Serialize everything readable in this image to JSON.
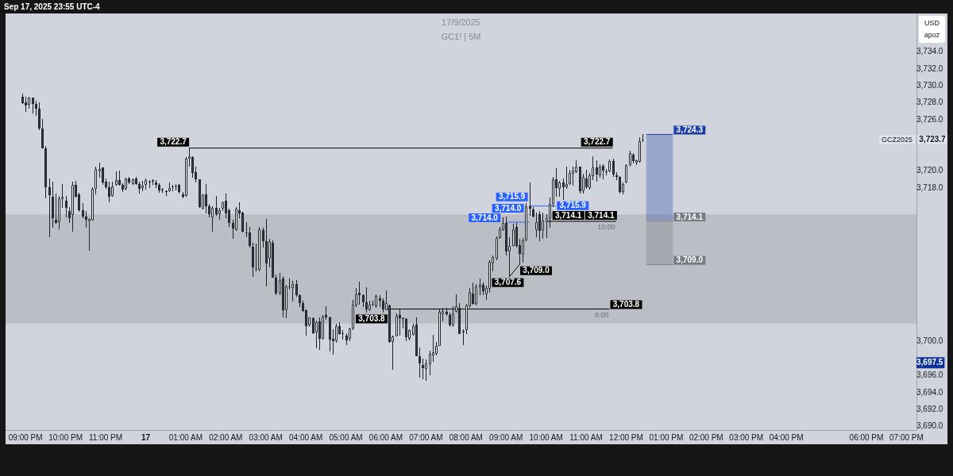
{
  "chart_data": {
    "type": "candlestick",
    "title": "17/9/2025",
    "subtitle": "GC1! | 5M",
    "ylabel": "USD apoz",
    "xlim": [
      "2025-09-16T20:30",
      "2025-09-17T19:15"
    ],
    "ylim": [
      3689.6,
      3738.5
    ],
    "xticks": [
      {
        "value": "2025-09-16T21:00",
        "label": "09:00 PM"
      },
      {
        "value": "2025-09-16T22:00",
        "label": "10:00 PM"
      },
      {
        "value": "2025-09-16T23:00",
        "label": "11:00 PM"
      },
      {
        "value": "2025-09-17T00:00",
        "label": "17"
      },
      {
        "value": "2025-09-17T01:00",
        "label": "01:00 AM"
      },
      {
        "value": "2025-09-17T02:00",
        "label": "02:00 AM"
      },
      {
        "value": "2025-09-17T03:00",
        "label": "03:00 AM"
      },
      {
        "value": "2025-09-17T04:00",
        "label": "04:00 AM"
      },
      {
        "value": "2025-09-17T05:00",
        "label": "05:00 AM"
      },
      {
        "value": "2025-09-17T06:00",
        "label": "06:00 AM"
      },
      {
        "value": "2025-09-17T07:00",
        "label": "07:00 AM"
      },
      {
        "value": "2025-09-17T08:00",
        "label": "08:00 AM"
      },
      {
        "value": "2025-09-17T09:00",
        "label": "09:00 AM"
      },
      {
        "value": "2025-09-17T10:00",
        "label": "10:00 AM"
      },
      {
        "value": "2025-09-17T11:00",
        "label": "11:00 AM"
      },
      {
        "value": "2025-09-17T12:00",
        "label": "12:00 PM"
      },
      {
        "value": "2025-09-17T13:00",
        "label": "01:00 PM"
      },
      {
        "value": "2025-09-17T14:00",
        "label": "02:00 PM"
      },
      {
        "value": "2025-09-17T15:00",
        "label": "03:00 PM"
      },
      {
        "value": "2025-09-17T16:00",
        "label": "04:00 PM"
      },
      {
        "value": "2025-09-17T18:00",
        "label": "06:00 PM"
      },
      {
        "value": "2025-09-17T19:00",
        "label": "07:00 PM"
      }
    ],
    "yticks": [
      {
        "value": 3690,
        "label": "3,690.0"
      },
      {
        "value": 3692,
        "label": "3,692.0"
      },
      {
        "value": 3694,
        "label": "3,694.0"
      },
      {
        "value": 3696,
        "label": "3,696.0"
      },
      {
        "value": 3697.5,
        "label": "3,697.5"
      },
      {
        "value": 3700,
        "label": "3,700.0"
      },
      {
        "value": 3718,
        "label": "3,718.0"
      },
      {
        "value": 3720,
        "label": "3,720.0"
      },
      {
        "value": 3726,
        "label": "3,726.0"
      },
      {
        "value": 3728,
        "label": "3,728.0"
      },
      {
        "value": 3730,
        "label": "3,730.0"
      },
      {
        "value": 3732,
        "label": "3,732.0"
      },
      {
        "value": 3734,
        "label": "3,734.0"
      }
    ],
    "grid": false,
    "legend": false,
    "bands": [
      {
        "axis": "y",
        "from": 3702.1,
        "to": 3714.9,
        "color": "#bcbec5"
      }
    ],
    "annotations": [
      "Sep 17, 2025 23:55 UTC-4",
      {
        "text": "10:00",
        "x": "2025-09-17T11:45",
        "y": 3714.1
      },
      {
        "text": "6:00",
        "x": "2025-09-17T11:35",
        "y": 3703.8
      }
    ],
    "series": [
      {
        "type": "candlestick",
        "name": "GCZ2025",
        "x": [
          "2025-09-16T20:55",
          "2025-09-16T21:00",
          "2025-09-16T21:05",
          "2025-09-16T21:10",
          "2025-09-16T21:15",
          "2025-09-16T21:20",
          "2025-09-16T21:25",
          "2025-09-16T21:30",
          "2025-09-16T21:35",
          "2025-09-16T21:40",
          "2025-09-16T21:45",
          "2025-09-16T21:50",
          "2025-09-16T21:55",
          "2025-09-16T22:00",
          "2025-09-16T22:05",
          "2025-09-16T22:10",
          "2025-09-16T22:15",
          "2025-09-16T22:20",
          "2025-09-16T22:25",
          "2025-09-16T22:30",
          "2025-09-16T22:35",
          "2025-09-16T22:40",
          "2025-09-16T22:45",
          "2025-09-16T22:50",
          "2025-09-16T22:55",
          "2025-09-16T23:00",
          "2025-09-16T23:05",
          "2025-09-16T23:10",
          "2025-09-16T23:15",
          "2025-09-16T23:20",
          "2025-09-16T23:25",
          "2025-09-16T23:30",
          "2025-09-16T23:35",
          "2025-09-16T23:40",
          "2025-09-16T23:45",
          "2025-09-16T23:50",
          "2025-09-16T23:55",
          "2025-09-17T00:00",
          "2025-09-17T00:05",
          "2025-09-17T00:10",
          "2025-09-17T00:15",
          "2025-09-17T00:20",
          "2025-09-17T00:25",
          "2025-09-17T00:30",
          "2025-09-17T00:35",
          "2025-09-17T00:40",
          "2025-09-17T00:45",
          "2025-09-17T00:50",
          "2025-09-17T00:55",
          "2025-09-17T01:00",
          "2025-09-17T01:05",
          "2025-09-17T01:10",
          "2025-09-17T01:15",
          "2025-09-17T01:20",
          "2025-09-17T01:25",
          "2025-09-17T01:30",
          "2025-09-17T01:35",
          "2025-09-17T01:40",
          "2025-09-17T01:45",
          "2025-09-17T01:50",
          "2025-09-17T01:55",
          "2025-09-17T02:00",
          "2025-09-17T02:05",
          "2025-09-17T02:10",
          "2025-09-17T02:15",
          "2025-09-17T02:20",
          "2025-09-17T02:25",
          "2025-09-17T02:30",
          "2025-09-17T02:35",
          "2025-09-17T02:40",
          "2025-09-17T02:45",
          "2025-09-17T02:50",
          "2025-09-17T02:55",
          "2025-09-17T03:00",
          "2025-09-17T03:05",
          "2025-09-17T03:10",
          "2025-09-17T03:15",
          "2025-09-17T03:20",
          "2025-09-17T03:25",
          "2025-09-17T03:30",
          "2025-09-17T03:35",
          "2025-09-17T03:40",
          "2025-09-17T03:45",
          "2025-09-17T03:50",
          "2025-09-17T03:55",
          "2025-09-17T04:00",
          "2025-09-17T04:05",
          "2025-09-17T04:10",
          "2025-09-17T04:15",
          "2025-09-17T04:20",
          "2025-09-17T04:25",
          "2025-09-17T04:30",
          "2025-09-17T04:35",
          "2025-09-17T04:40",
          "2025-09-17T04:45",
          "2025-09-17T04:50",
          "2025-09-17T04:55",
          "2025-09-17T05:00",
          "2025-09-17T05:05",
          "2025-09-17T05:10",
          "2025-09-17T05:15",
          "2025-09-17T05:20",
          "2025-09-17T05:25",
          "2025-09-17T05:30",
          "2025-09-17T05:35",
          "2025-09-17T05:40",
          "2025-09-17T05:45",
          "2025-09-17T05:50",
          "2025-09-17T05:55",
          "2025-09-17T06:00",
          "2025-09-17T06:05",
          "2025-09-17T06:10",
          "2025-09-17T06:15",
          "2025-09-17T06:20",
          "2025-09-17T06:25",
          "2025-09-17T06:30",
          "2025-09-17T06:35",
          "2025-09-17T06:40",
          "2025-09-17T06:45",
          "2025-09-17T06:50",
          "2025-09-17T06:55",
          "2025-09-17T07:00",
          "2025-09-17T07:05",
          "2025-09-17T07:10",
          "2025-09-17T07:15",
          "2025-09-17T07:20",
          "2025-09-17T07:25",
          "2025-09-17T07:30",
          "2025-09-17T07:35",
          "2025-09-17T07:40",
          "2025-09-17T07:45",
          "2025-09-17T07:50",
          "2025-09-17T07:55",
          "2025-09-17T08:00",
          "2025-09-17T08:05",
          "2025-09-17T08:10",
          "2025-09-17T08:15",
          "2025-09-17T08:20",
          "2025-09-17T08:25",
          "2025-09-17T08:30",
          "2025-09-17T08:35",
          "2025-09-17T08:40",
          "2025-09-17T08:45",
          "2025-09-17T08:50",
          "2025-09-17T08:55",
          "2025-09-17T09:00",
          "2025-09-17T09:05",
          "2025-09-17T09:10",
          "2025-09-17T09:15",
          "2025-09-17T09:20",
          "2025-09-17T09:25",
          "2025-09-17T09:30",
          "2025-09-17T09:35",
          "2025-09-17T09:40",
          "2025-09-17T09:45",
          "2025-09-17T09:50",
          "2025-09-17T09:55",
          "2025-09-17T10:00",
          "2025-09-17T10:05",
          "2025-09-17T10:10",
          "2025-09-17T10:15",
          "2025-09-17T10:20",
          "2025-09-17T10:25",
          "2025-09-17T10:30",
          "2025-09-17T10:35",
          "2025-09-17T10:40",
          "2025-09-17T10:45",
          "2025-09-17T10:50",
          "2025-09-17T10:55",
          "2025-09-17T11:00",
          "2025-09-17T11:05",
          "2025-09-17T11:10",
          "2025-09-17T11:15",
          "2025-09-17T11:20",
          "2025-09-17T11:25",
          "2025-09-17T11:30",
          "2025-09-17T11:35",
          "2025-09-17T11:40",
          "2025-09-17T11:45",
          "2025-09-17T11:50",
          "2025-09-17T11:55",
          "2025-09-17T12:00",
          "2025-09-17T12:05",
          "2025-09-17T12:10",
          "2025-09-17T12:15",
          "2025-09-17T12:20",
          "2025-09-17T12:25"
        ],
        "ohlc": [
          [
            3728.7,
            3729.0,
            3727.9,
            3728.0
          ],
          [
            3728.1,
            3728.7,
            3727.0,
            3727.7
          ],
          [
            3727.8,
            3728.7,
            3727.4,
            3728.6
          ],
          [
            3728.6,
            3728.6,
            3726.8,
            3727.9
          ],
          [
            3727.9,
            3728.2,
            3726.5,
            3727.3
          ],
          [
            3727.3,
            3728.0,
            3724.9,
            3725.0
          ],
          [
            3725.0,
            3726.1,
            3722.7,
            3722.7
          ],
          [
            3722.7,
            3722.9,
            3716.8,
            3718.1
          ],
          [
            3718.1,
            3719.1,
            3712.3,
            3717.2
          ],
          [
            3717.0,
            3718.7,
            3713.4,
            3714.5
          ],
          [
            3714.3,
            3717.3,
            3713.9,
            3713.9
          ],
          [
            3714.0,
            3717.0,
            3713.2,
            3716.8
          ],
          [
            3716.7,
            3718.4,
            3715.7,
            3717.0
          ],
          [
            3716.5,
            3717.0,
            3714.6,
            3715.7
          ],
          [
            3715.3,
            3715.7,
            3714.0,
            3714.5
          ],
          [
            3714.8,
            3718.7,
            3712.9,
            3718.4
          ],
          [
            3718.4,
            3718.8,
            3716.9,
            3717.0
          ],
          [
            3717.3,
            3717.4,
            3715.3,
            3715.4
          ],
          [
            3715.4,
            3716.2,
            3714.5,
            3714.7
          ],
          [
            3714.7,
            3715.3,
            3713.4,
            3714.3
          ],
          [
            3714.1,
            3714.4,
            3710.7,
            3714.4
          ],
          [
            3714.2,
            3718.1,
            3714.2,
            3717.9
          ],
          [
            3717.9,
            3720.5,
            3717.3,
            3720.2
          ],
          [
            3720.0,
            3720.9,
            3719.3,
            3720.2
          ],
          [
            3720.4,
            3720.4,
            3718.4,
            3718.7
          ],
          [
            3718.8,
            3719.1,
            3718.0,
            3718.1
          ],
          [
            3718.1,
            3718.7,
            3716.4,
            3717.0
          ],
          [
            3717.1,
            3718.7,
            3717.0,
            3718.2
          ],
          [
            3718.4,
            3719.9,
            3718.3,
            3718.9
          ],
          [
            3718.9,
            3720.0,
            3718.3,
            3718.4
          ],
          [
            3718.4,
            3718.5,
            3717.6,
            3717.8
          ],
          [
            3717.9,
            3719.2,
            3717.8,
            3719.1
          ],
          [
            3719.1,
            3719.3,
            3718.5,
            3718.7
          ],
          [
            3718.5,
            3719.1,
            3718.4,
            3719.0
          ],
          [
            3719.1,
            3719.3,
            3718.4,
            3718.5
          ],
          [
            3718.5,
            3718.7,
            3717.4,
            3717.9
          ],
          [
            3718.0,
            3718.8,
            3717.7,
            3718.3
          ],
          [
            3718.4,
            3719.1,
            3717.9,
            3718.9
          ],
          [
            3718.8,
            3718.9,
            3718.1,
            3718.7
          ],
          [
            3718.8,
            3719.0,
            3718.4,
            3718.9
          ],
          [
            3718.7,
            3718.9,
            3718.1,
            3718.4
          ],
          [
            3718.4,
            3718.5,
            3717.5,
            3717.7
          ],
          [
            3717.8,
            3718.0,
            3717.5,
            3717.7
          ],
          [
            3717.6,
            3717.7,
            3717.1,
            3717.5
          ],
          [
            3717.6,
            3718.6,
            3717.6,
            3718.0
          ],
          [
            3718.1,
            3718.3,
            3717.7,
            3718.2
          ],
          [
            3718.1,
            3718.4,
            3717.8,
            3718.2
          ],
          [
            3718.4,
            3718.4,
            3717.4,
            3717.5
          ],
          [
            3717.3,
            3717.5,
            3716.8,
            3717.0
          ],
          [
            3717.1,
            3721.6,
            3717.0,
            3721.5
          ],
          [
            3721.5,
            3722.7,
            3720.6,
            3721.7
          ],
          [
            3721.6,
            3721.7,
            3719.3,
            3719.8
          ],
          [
            3719.9,
            3720.5,
            3718.7,
            3719.0
          ],
          [
            3719.0,
            3719.0,
            3715.7,
            3715.8
          ],
          [
            3715.6,
            3717.3,
            3715.5,
            3717.2
          ],
          [
            3717.3,
            3718.4,
            3715.1,
            3715.9
          ],
          [
            3715.9,
            3716.1,
            3714.6,
            3714.9
          ],
          [
            3714.6,
            3715.8,
            3712.9,
            3715.7
          ],
          [
            3715.7,
            3717.0,
            3714.8,
            3714.9
          ],
          [
            3714.9,
            3715.6,
            3714.3,
            3715.4
          ],
          [
            3715.6,
            3716.4,
            3715.4,
            3716.3
          ],
          [
            3716.5,
            3717.3,
            3714.5,
            3715.0
          ],
          [
            3715.4,
            3715.5,
            3713.5,
            3713.9
          ],
          [
            3713.9,
            3714.2,
            3712.1,
            3713.3
          ],
          [
            3713.1,
            3715.7,
            3713.0,
            3715.6
          ],
          [
            3715.4,
            3716.3,
            3714.5,
            3715.0
          ],
          [
            3715.1,
            3715.2,
            3712.8,
            3712.9
          ],
          [
            3712.7,
            3714.0,
            3712.3,
            3712.8
          ],
          [
            3712.8,
            3713.4,
            3711.1,
            3711.2
          ],
          [
            3711.1,
            3711.5,
            3707.6,
            3708.7
          ],
          [
            3708.5,
            3711.4,
            3708.3,
            3708.6
          ],
          [
            3708.4,
            3713.4,
            3708.3,
            3713.2
          ],
          [
            3713.1,
            3713.3,
            3711.1,
            3711.8
          ],
          [
            3711.8,
            3714.3,
            3706.5,
            3709.2
          ],
          [
            3709.7,
            3712.0,
            3708.7,
            3711.8
          ],
          [
            3711.6,
            3711.8,
            3707.5,
            3707.5
          ],
          [
            3707.5,
            3707.8,
            3705.5,
            3705.6
          ],
          [
            3705.6,
            3708.0,
            3705.5,
            3707.2
          ],
          [
            3707.4,
            3707.6,
            3702.9,
            3703.7
          ],
          [
            3703.7,
            3706.6,
            3702.8,
            3706.5
          ],
          [
            3706.4,
            3707.3,
            3706.1,
            3706.5
          ],
          [
            3706.3,
            3707.1,
            3704.7,
            3706.7
          ],
          [
            3706.7,
            3707.2,
            3705.3,
            3705.4
          ],
          [
            3705.4,
            3705.5,
            3704.1,
            3704.5
          ],
          [
            3704.5,
            3704.7,
            3703.5,
            3703.6
          ],
          [
            3703.7,
            3703.7,
            3700.7,
            3701.8
          ],
          [
            3701.9,
            3702.8,
            3701.8,
            3702.8
          ],
          [
            3702.7,
            3702.8,
            3700.9,
            3701.0
          ],
          [
            3701.1,
            3702.4,
            3699.2,
            3702.3
          ],
          [
            3702.4,
            3702.8,
            3699.1,
            3700.3
          ],
          [
            3700.3,
            3703.1,
            3700.3,
            3702.9
          ],
          [
            3703.1,
            3704.1,
            3702.6,
            3702.8
          ],
          [
            3702.8,
            3702.9,
            3698.9,
            3700.2
          ],
          [
            3700.3,
            3701.4,
            3698.5,
            3700.0
          ],
          [
            3700.0,
            3702.0,
            3699.9,
            3701.8
          ],
          [
            3701.8,
            3702.2,
            3700.8,
            3700.9
          ],
          [
            3700.9,
            3701.3,
            3700.3,
            3701.0
          ],
          [
            3700.7,
            3700.9,
            3699.6,
            3700.1
          ],
          [
            3700.3,
            3701.6,
            3700.1,
            3701.5
          ],
          [
            3701.5,
            3704.8,
            3701.4,
            3704.3
          ],
          [
            3704.2,
            3706.2,
            3704.1,
            3705.5
          ],
          [
            3705.7,
            3707.0,
            3704.4,
            3705.4
          ],
          [
            3705.4,
            3705.5,
            3704.1,
            3704.6
          ],
          [
            3704.6,
            3706.3,
            3703.4,
            3703.8
          ],
          [
            3703.7,
            3704.7,
            3703.6,
            3704.3
          ],
          [
            3704.3,
            3704.7,
            3704.2,
            3704.4
          ],
          [
            3704.1,
            3705.5,
            3704.0,
            3705.3
          ],
          [
            3705.1,
            3705.4,
            3704.1,
            3704.8
          ],
          [
            3704.8,
            3705.0,
            3703.4,
            3703.8
          ],
          [
            3703.7,
            3705.9,
            3703.7,
            3704.5
          ],
          [
            3704.2,
            3704.3,
            3699.9,
            3699.9
          ],
          [
            3699.9,
            3700.6,
            3696.7,
            3700.6
          ],
          [
            3700.6,
            3703.2,
            3700.6,
            3703.0
          ],
          [
            3703.1,
            3703.7,
            3700.7,
            3702.7
          ],
          [
            3702.7,
            3702.8,
            3701.6,
            3702.6
          ],
          [
            3702.6,
            3702.7,
            3700.1,
            3700.5
          ],
          [
            3700.3,
            3701.4,
            3700.2,
            3701.3
          ],
          [
            3700.8,
            3702.0,
            3700.7,
            3701.8
          ],
          [
            3702.0,
            3702.8,
            3698.3,
            3698.3
          ],
          [
            3698.3,
            3699.2,
            3695.8,
            3697.4
          ],
          [
            3697.2,
            3697.9,
            3695.6,
            3696.9
          ],
          [
            3696.8,
            3697.8,
            3695.4,
            3697.4
          ],
          [
            3697.3,
            3698.9,
            3696.1,
            3698.5
          ],
          [
            3698.4,
            3700.7,
            3697.7,
            3698.7
          ],
          [
            3698.5,
            3699.9,
            3698.4,
            3699.5
          ],
          [
            3699.5,
            3703.8,
            3699.5,
            3703.5
          ],
          [
            3703.2,
            3703.9,
            3702.4,
            3703.6
          ],
          [
            3703.5,
            3703.9,
            3703.1,
            3703.2
          ],
          [
            3703.1,
            3703.3,
            3701.8,
            3701.9
          ],
          [
            3701.9,
            3704.1,
            3701.8,
            3703.3
          ],
          [
            3703.5,
            3705.5,
            3703.4,
            3704.1
          ],
          [
            3703.9,
            3704.5,
            3700.9,
            3700.9
          ],
          [
            3701.1,
            3701.4,
            3699.6,
            3701.2
          ],
          [
            3701.3,
            3704.4,
            3700.9,
            3704.2
          ],
          [
            3704.1,
            3706.2,
            3704.0,
            3705.8
          ],
          [
            3705.6,
            3706.9,
            3704.4,
            3704.4
          ],
          [
            3704.4,
            3706.7,
            3704.3,
            3706.5
          ],
          [
            3706.4,
            3707.3,
            3705.5,
            3706.6
          ],
          [
            3706.6,
            3706.9,
            3705.5,
            3705.9
          ],
          [
            3705.5,
            3706.5,
            3704.9,
            3706.3
          ],
          [
            3706.2,
            3709.5,
            3705.8,
            3709.3
          ],
          [
            3709.2,
            3710.0,
            3708.3,
            3709.9
          ],
          [
            3709.7,
            3712.3,
            3709.6,
            3712.1
          ],
          [
            3712.1,
            3713.4,
            3712.1,
            3713.2
          ],
          [
            3713.1,
            3714.5,
            3713.0,
            3713.9
          ],
          [
            3713.9,
            3714.6,
            3710.1,
            3710.6
          ],
          [
            3710.6,
            3712.2,
            3707.6,
            3711.2
          ],
          [
            3711.2,
            3713.8,
            3711.2,
            3713.2
          ],
          [
            3713.4,
            3713.9,
            3711.1,
            3711.2
          ],
          [
            3711.3,
            3712.0,
            3709.0,
            3710.3
          ],
          [
            3710.2,
            3712.1,
            3709.3,
            3711.9
          ],
          [
            3711.9,
            3716.2,
            3711.8,
            3715.9
          ],
          [
            3715.9,
            3718.6,
            3714.8,
            3715.6
          ],
          [
            3715.5,
            3715.7,
            3714.6,
            3714.7
          ],
          [
            3713.1,
            3715.1,
            3712.3,
            3714.0
          ],
          [
            3714.9,
            3715.3,
            3711.8,
            3713.0
          ],
          [
            3713.1,
            3715.1,
            3712.1,
            3714.2
          ],
          [
            3714.0,
            3714.9,
            3712.2,
            3714.5
          ],
          [
            3714.5,
            3716.8,
            3713.4,
            3716.1
          ],
          [
            3716.1,
            3719.3,
            3715.8,
            3719.0
          ],
          [
            3719.0,
            3720.3,
            3717.0,
            3718.0
          ],
          [
            3717.9,
            3718.8,
            3717.0,
            3718.7
          ],
          [
            3718.7,
            3719.1,
            3716.7,
            3718.1
          ],
          [
            3718.1,
            3720.5,
            3718.0,
            3718.5
          ],
          [
            3718.5,
            3720.1,
            3718.4,
            3719.8
          ],
          [
            3719.7,
            3720.5,
            3718.3,
            3720.1
          ],
          [
            3719.9,
            3721.2,
            3719.8,
            3720.5
          ],
          [
            3720.5,
            3720.5,
            3717.4,
            3717.6
          ],
          [
            3717.6,
            3719.6,
            3717.4,
            3719.3
          ],
          [
            3719.1,
            3720.1,
            3718.0,
            3718.1
          ],
          [
            3718.0,
            3719.7,
            3717.9,
            3719.5
          ],
          [
            3719.4,
            3721.7,
            3719.0,
            3720.4
          ],
          [
            3720.4,
            3721.2,
            3718.8,
            3719.6
          ],
          [
            3719.5,
            3720.8,
            3719.3,
            3720.5
          ],
          [
            3720.6,
            3720.8,
            3719.1,
            3720.1
          ],
          [
            3720.0,
            3720.2,
            3719.5,
            3719.9
          ],
          [
            3720.0,
            3721.3,
            3719.9,
            3721.2
          ],
          [
            3721.2,
            3721.4,
            3719.4,
            3719.6
          ],
          [
            3719.5,
            3719.8,
            3719.0,
            3719.3
          ],
          [
            3719.3,
            3719.4,
            3717.4,
            3717.5
          ],
          [
            3717.5,
            3718.6,
            3717.3,
            3718.5
          ],
          [
            3718.7,
            3720.8,
            3718.6,
            3720.7
          ],
          [
            3720.7,
            3722.3,
            3720.6,
            3722.1
          ],
          [
            3721.9,
            3722.1,
            3720.9,
            3721.2
          ],
          [
            3721.0,
            3721.3,
            3720.8,
            3721.3
          ],
          [
            3721.1,
            3723.9,
            3721.0,
            3723.5
          ],
          [
            3723.6,
            3724.3,
            3723.5,
            3723.7
          ]
        ],
        "value_labels": [
          null,
          null,
          null,
          null,
          null,
          null,
          null,
          null,
          null,
          null,
          null,
          null,
          null,
          null,
          null,
          null,
          null,
          null,
          null,
          null,
          null,
          null,
          null,
          null,
          null,
          null,
          null,
          null,
          null,
          null,
          null,
          null,
          null,
          null,
          null,
          null,
          null,
          null,
          null,
          null,
          null,
          null,
          null,
          null,
          null,
          null,
          null,
          null,
          null,
          null,
          null,
          null,
          null,
          null,
          null,
          null,
          null,
          null,
          null,
          null,
          null,
          null,
          null,
          null,
          null,
          null,
          null,
          null,
          null,
          null,
          null,
          null,
          null,
          null,
          null,
          null,
          null,
          null,
          null,
          null,
          null,
          null,
          null,
          null,
          null,
          null,
          null,
          null,
          null,
          null,
          null,
          null,
          null,
          null,
          null,
          null,
          null,
          null,
          null,
          null,
          null,
          null,
          null,
          null,
          null,
          null,
          null,
          null,
          null,
          null,
          null,
          null,
          null,
          null,
          null,
          null,
          null,
          null,
          null,
          null,
          null,
          null,
          null,
          null,
          null,
          null,
          null,
          null,
          null,
          null,
          null,
          null,
          null,
          null,
          null,
          null,
          null,
          null,
          null,
          null,
          null,
          null,
          null,
          null,
          null,
          null,
          null,
          null,
          null,
          null,
          null,
          null,
          null,
          null,
          null,
          null,
          null,
          null,
          null,
          null,
          null,
          null,
          null,
          null,
          null,
          null,
          null,
          null,
          null,
          null,
          null,
          null,
          null,
          null,
          null,
          null,
          null,
          null,
          null,
          null,
          null,
          null,
          null,
          null,
          null,
          null,
          "3,723.7"
        ]
      },
      {
        "type": "line",
        "color": "#000000",
        "x": [
          "2025-09-17T01:05",
          "2025-09-17T11:40"
        ],
        "values": [
          3722.7,
          3722.7
        ],
        "value_labels": [
          "3,722.7",
          "3,722.7"
        ]
      },
      {
        "type": "line",
        "color": "#2962ff",
        "x": [
          "2025-09-17T09:00",
          "2025-09-17T09:35"
        ],
        "values": [
          3714.0,
          3714.0
        ],
        "value_labels": [
          "3,714.0",
          "3,714.0"
        ]
      },
      {
        "type": "line",
        "color": "#2962ff",
        "x": [
          "2025-09-17T09:35",
          "2025-09-17T10:15"
        ],
        "values": [
          3715.9,
          3715.9
        ],
        "value_labels": [
          "3,715.9",
          "3,715.9"
        ]
      },
      {
        "type": "line",
        "color": "#000000",
        "x": [
          "2025-09-17T09:05",
          "2025-09-17T09:20"
        ],
        "values": [
          3707.6,
          3709.0
        ],
        "value_labels": [
          "3,707.6",
          "3,709.0"
        ]
      },
      {
        "type": "line",
        "color": "#1c3fa8",
        "x": [
          "2025-09-17T12:30",
          "2025-09-17T13:10"
        ],
        "values": [
          3724.3,
          3724.3
        ],
        "lower": [
          3714.1,
          3714.1
        ],
        "upper": [
          3724.3,
          3724.3
        ],
        "value_labels": [
          null,
          "3,724.3"
        ]
      },
      {
        "type": "line",
        "color": "#787b86",
        "x": [
          "2025-09-17T12:30",
          "2025-09-17T13:10"
        ],
        "values": [
          3714.1,
          3714.1
        ],
        "value_labels": [
          null,
          "3,714.1"
        ]
      },
      {
        "type": "line",
        "color": "#787b86",
        "x": [
          "2025-09-17T12:30",
          "2025-09-17T13:10"
        ],
        "values": [
          3709.0,
          3709.0
        ],
        "lower": [
          3709.0,
          3709.0
        ],
        "upper": [
          3714.1,
          3714.1
        ],
        "value_labels": [
          null,
          "3,709.0"
        ]
      },
      {
        "type": "line",
        "color": "#000000",
        "x": [
          "2025-09-17T10:00",
          "2025-09-17T11:45"
        ],
        "values": [
          3714.1,
          3714.1
        ],
        "value_labels": [
          "3,714.1",
          "3,714.1"
        ]
      },
      {
        "type": "line",
        "color": "#000000",
        "x": [
          "2025-09-17T06:00",
          "2025-09-17T11:35"
        ],
        "values": [
          3703.8,
          3703.8
        ],
        "value_labels": [
          "3,703.8",
          "3,703.8"
        ]
      }
    ]
  }
}
